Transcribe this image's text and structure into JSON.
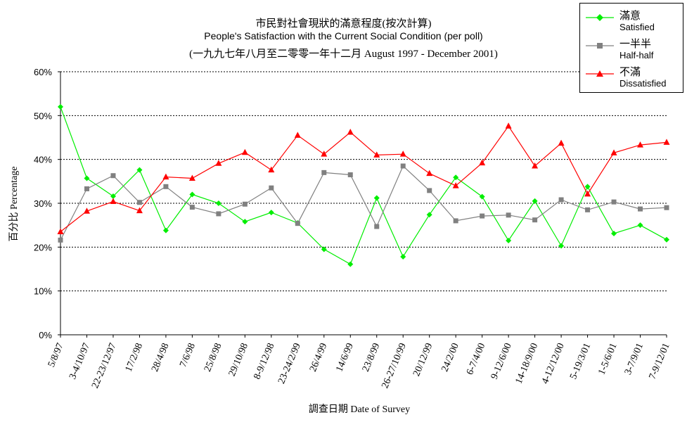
{
  "chart_data": {
    "type": "line",
    "title_zh": "市民對社會現狀的滿意程度(按次計算)",
    "title_en": "People's Satisfaction with the Current Social Condition (per poll)",
    "subtitle": "(一九九七年八月至二零零一年十二月 August 1997 -  December 2001)",
    "ylabel": "百分比 Percentage",
    "xlabel": "調查日期 Date of Survey",
    "ylim": [
      0,
      60
    ],
    "y_ticks": [
      "0%",
      "10%",
      "20%",
      "30%",
      "40%",
      "50%",
      "60%"
    ],
    "grid": true,
    "legend_position": "top-right",
    "categories": [
      "5/8/97",
      "3-4/10/97",
      "22-23/12/97",
      "17/2/98",
      "28/4/98",
      "7/6/98",
      "25/8/98",
      "29/10/98",
      "8-9/12/98",
      "23-24/2/99",
      "26/4/99",
      "14/6/99",
      "23/8/99",
      "26-27/10/99",
      "20/12/99",
      "24/2/00",
      "6-7/4/00",
      "9-12/6/00",
      "14-18/9/00",
      "4-12/12/00",
      "5-19/3/01",
      "1-5/6/01",
      "3-7/9/01",
      "7-9/12/01"
    ],
    "series": [
      {
        "name_zh": "滿意",
        "name_en": "Satisfied",
        "color": "#00ee00",
        "marker": "diamond",
        "values": [
          52.0,
          35.7,
          31.6,
          37.6,
          23.8,
          32.0,
          30.0,
          25.8,
          27.9,
          25.5,
          19.5,
          16.1,
          31.2,
          17.8,
          27.4,
          35.9,
          31.5,
          21.5,
          30.5,
          20.3,
          33.8,
          23.1,
          25.0,
          21.7
        ]
      },
      {
        "name_zh": "一半半",
        "name_en": "Half-half",
        "color": "#808080",
        "marker": "square",
        "values": [
          21.6,
          33.3,
          36.3,
          30.2,
          33.8,
          29.1,
          27.6,
          29.8,
          33.5,
          25.4,
          37.0,
          36.5,
          24.7,
          38.5,
          32.9,
          26.0,
          27.1,
          27.3,
          26.2,
          30.8,
          28.5,
          30.3,
          28.7,
          29.0
        ]
      },
      {
        "name_zh": "不滿",
        "name_en": "Dissatisfied",
        "color": "#ff0000",
        "marker": "triangle",
        "values": [
          23.5,
          28.2,
          30.4,
          28.3,
          36.0,
          35.7,
          39.1,
          41.6,
          37.6,
          45.5,
          41.2,
          46.2,
          41.0,
          41.2,
          36.8,
          34.0,
          39.2,
          47.6,
          38.5,
          43.7,
          32.1,
          41.5,
          43.3,
          43.9
        ]
      }
    ]
  }
}
